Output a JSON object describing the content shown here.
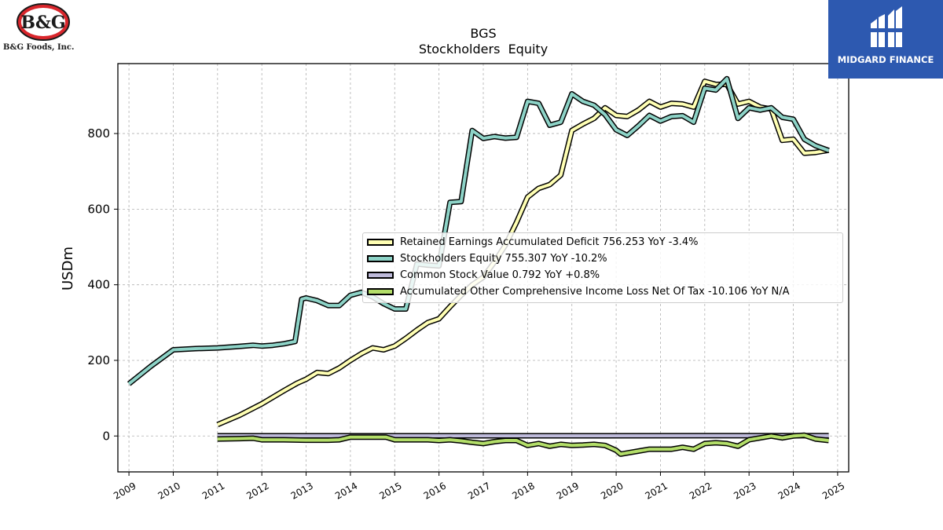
{
  "branding": {
    "company_logo_text": "B&G",
    "company_name": "B&G Foods, Inc.",
    "publisher_name": "MIDGARD FINANCE"
  },
  "chart_data": {
    "type": "line",
    "title": "BGS",
    "subtitle": "Stockholders  Equity",
    "ylabel": "USDm",
    "xlabel": "",
    "xlim": [
      2008.75,
      2025.25
    ],
    "ylim": [
      -95,
      985
    ],
    "x_ticks": [
      "2009",
      "2010",
      "2011",
      "2012",
      "2013",
      "2014",
      "2015",
      "2016",
      "2017",
      "2018",
      "2019",
      "2020",
      "2021",
      "2022",
      "2023",
      "2024",
      "2025"
    ],
    "y_ticks": [
      0,
      200,
      400,
      600,
      800
    ],
    "grid": true,
    "legend_position": "center-right",
    "series": [
      {
        "name": "Retained Earnings Accumulated Deficit",
        "legend_text": "Retained Earnings Accumulated Deficit  756.253 YoY -3.4%",
        "color": "#ffffb3",
        "points": [
          [
            2011.0,
            30
          ],
          [
            2011.5,
            55
          ],
          [
            2012.0,
            85
          ],
          [
            2012.5,
            120
          ],
          [
            2012.8,
            140
          ],
          [
            2013.0,
            150
          ],
          [
            2013.25,
            168
          ],
          [
            2013.5,
            165
          ],
          [
            2013.75,
            180
          ],
          [
            2014.0,
            200
          ],
          [
            2014.25,
            218
          ],
          [
            2014.5,
            233
          ],
          [
            2014.75,
            228
          ],
          [
            2015.0,
            238
          ],
          [
            2015.25,
            258
          ],
          [
            2015.5,
            280
          ],
          [
            2015.75,
            300
          ],
          [
            2016.0,
            310
          ],
          [
            2016.25,
            342
          ],
          [
            2016.5,
            372
          ],
          [
            2016.75,
            400
          ],
          [
            2017.0,
            420
          ],
          [
            2017.25,
            460
          ],
          [
            2017.5,
            505
          ],
          [
            2017.75,
            565
          ],
          [
            2018.0,
            632
          ],
          [
            2018.25,
            655
          ],
          [
            2018.5,
            665
          ],
          [
            2018.75,
            690
          ],
          [
            2019.0,
            808
          ],
          [
            2019.25,
            825
          ],
          [
            2019.5,
            840
          ],
          [
            2019.75,
            868
          ],
          [
            2020.0,
            848
          ],
          [
            2020.25,
            845
          ],
          [
            2020.5,
            862
          ],
          [
            2020.75,
            885
          ],
          [
            2021.0,
            870
          ],
          [
            2021.25,
            880
          ],
          [
            2021.5,
            878
          ],
          [
            2021.75,
            870
          ],
          [
            2022.0,
            938
          ],
          [
            2022.25,
            930
          ],
          [
            2022.5,
            930
          ],
          [
            2022.75,
            878
          ],
          [
            2023.0,
            885
          ],
          [
            2023.25,
            870
          ],
          [
            2023.5,
            865
          ],
          [
            2023.75,
            782
          ],
          [
            2024.0,
            785
          ],
          [
            2024.25,
            748
          ],
          [
            2024.5,
            750
          ],
          [
            2024.8,
            756
          ]
        ]
      },
      {
        "name": "Stockholders Equity",
        "legend_text": "Stockholders Equity  755.307 YoY -10.2%",
        "color": "#8dd3c7",
        "points": [
          [
            2009.0,
            138
          ],
          [
            2009.5,
            185
          ],
          [
            2010.0,
            228
          ],
          [
            2010.5,
            231
          ],
          [
            2011.0,
            233
          ],
          [
            2011.5,
            237
          ],
          [
            2011.8,
            240
          ],
          [
            2012.0,
            238
          ],
          [
            2012.25,
            240
          ],
          [
            2012.5,
            244
          ],
          [
            2012.75,
            250
          ],
          [
            2012.9,
            362
          ],
          [
            2013.0,
            365
          ],
          [
            2013.25,
            358
          ],
          [
            2013.5,
            345
          ],
          [
            2013.75,
            345
          ],
          [
            2014.0,
            372
          ],
          [
            2014.25,
            380
          ],
          [
            2014.5,
            368
          ],
          [
            2014.75,
            350
          ],
          [
            2015.0,
            336
          ],
          [
            2015.25,
            336
          ],
          [
            2015.5,
            455
          ],
          [
            2015.75,
            452
          ],
          [
            2016.0,
            450
          ],
          [
            2016.25,
            618
          ],
          [
            2016.5,
            620
          ],
          [
            2016.75,
            808
          ],
          [
            2017.0,
            787
          ],
          [
            2017.25,
            792
          ],
          [
            2017.5,
            788
          ],
          [
            2017.75,
            790
          ],
          [
            2018.0,
            885
          ],
          [
            2018.25,
            880
          ],
          [
            2018.5,
            822
          ],
          [
            2018.75,
            830
          ],
          [
            2019.0,
            905
          ],
          [
            2019.25,
            885
          ],
          [
            2019.5,
            875
          ],
          [
            2019.75,
            850
          ],
          [
            2020.0,
            810
          ],
          [
            2020.25,
            795
          ],
          [
            2020.5,
            820
          ],
          [
            2020.75,
            848
          ],
          [
            2021.0,
            833
          ],
          [
            2021.25,
            845
          ],
          [
            2021.5,
            847
          ],
          [
            2021.75,
            830
          ],
          [
            2022.0,
            920
          ],
          [
            2022.25,
            915
          ],
          [
            2022.5,
            945
          ],
          [
            2022.75,
            840
          ],
          [
            2023.0,
            868
          ],
          [
            2023.25,
            862
          ],
          [
            2023.5,
            868
          ],
          [
            2023.75,
            843
          ],
          [
            2024.0,
            838
          ],
          [
            2024.25,
            785
          ],
          [
            2024.5,
            768
          ],
          [
            2024.8,
            755
          ]
        ]
      },
      {
        "name": "Common Stock Value",
        "legend_text": "Common Stock Value  0.792 YoY +0.8%",
        "color": "#bebada",
        "points": [
          [
            2011.0,
            0.5
          ],
          [
            2024.8,
            0.8
          ]
        ]
      },
      {
        "name": "Accumulated Other Comprehensive Income Loss Net Of Tax",
        "legend_text": "Accumulated Other Comprehensive Income Loss Net Of Tax  -10.106 YoY N/A",
        "color": "#b3de69",
        "points": [
          [
            2011.0,
            -8
          ],
          [
            2011.5,
            -7
          ],
          [
            2011.8,
            -6
          ],
          [
            2012.0,
            -10
          ],
          [
            2012.5,
            -10
          ],
          [
            2013.0,
            -11
          ],
          [
            2013.5,
            -11
          ],
          [
            2013.75,
            -10
          ],
          [
            2014.0,
            -3
          ],
          [
            2014.5,
            -3
          ],
          [
            2014.8,
            -3
          ],
          [
            2015.0,
            -10
          ],
          [
            2015.5,
            -10
          ],
          [
            2015.75,
            -10
          ],
          [
            2016.0,
            -12
          ],
          [
            2016.25,
            -10
          ],
          [
            2016.5,
            -13
          ],
          [
            2016.75,
            -17
          ],
          [
            2017.0,
            -20
          ],
          [
            2017.25,
            -15
          ],
          [
            2017.5,
            -12
          ],
          [
            2017.75,
            -12
          ],
          [
            2018.0,
            -25
          ],
          [
            2018.25,
            -20
          ],
          [
            2018.5,
            -27
          ],
          [
            2018.75,
            -22
          ],
          [
            2019.0,
            -25
          ],
          [
            2019.25,
            -24
          ],
          [
            2019.5,
            -22
          ],
          [
            2019.75,
            -25
          ],
          [
            2020.0,
            -38
          ],
          [
            2020.1,
            -48
          ],
          [
            2020.25,
            -45
          ],
          [
            2020.5,
            -40
          ],
          [
            2020.75,
            -35
          ],
          [
            2021.0,
            -35
          ],
          [
            2021.25,
            -35
          ],
          [
            2021.5,
            -30
          ],
          [
            2021.75,
            -35
          ],
          [
            2022.0,
            -20
          ],
          [
            2022.25,
            -18
          ],
          [
            2022.5,
            -20
          ],
          [
            2022.75,
            -27
          ],
          [
            2023.0,
            -10
          ],
          [
            2023.25,
            -5
          ],
          [
            2023.5,
            0
          ],
          [
            2023.75,
            -5
          ],
          [
            2024.0,
            0
          ],
          [
            2024.25,
            2
          ],
          [
            2024.5,
            -8
          ],
          [
            2024.8,
            -12
          ]
        ]
      }
    ]
  }
}
